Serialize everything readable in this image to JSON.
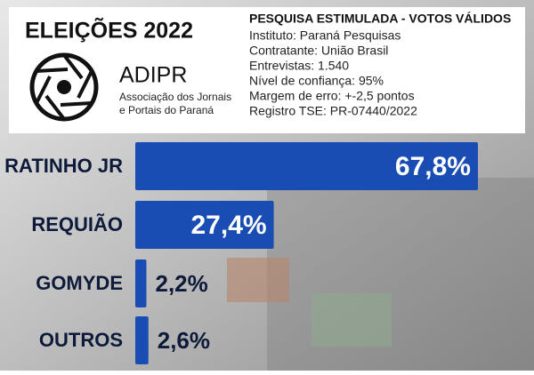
{
  "header": {
    "title": "ELEIÇÕES 2022",
    "org_name": "ADIPR",
    "org_lines": [
      "Associação dos Jornais",
      "e Portais do Paraná"
    ],
    "poll_title": "PESQUISA ESTIMULADA - VOTOS VÁLIDOS",
    "poll_lines": [
      "Instituto: Paraná Pesquisas",
      "Contratante: União Brasil",
      "Entrevistas: 1.540",
      "Nível de confiança: 95%",
      "Margem de erro: +-2,5 pontos",
      "Registro TSE: PR-07440/2022"
    ]
  },
  "chart_data": {
    "type": "bar",
    "orientation": "horizontal",
    "categories": [
      "RATINHO JR",
      "REQUIÃO",
      "GOMYDE",
      "OUTROS"
    ],
    "values": [
      67.8,
      27.4,
      2.2,
      2.6
    ],
    "value_labels": [
      "67,8%",
      "27,4%",
      "2,2%",
      "2,6%"
    ],
    "color": "#1a4db3"
  }
}
